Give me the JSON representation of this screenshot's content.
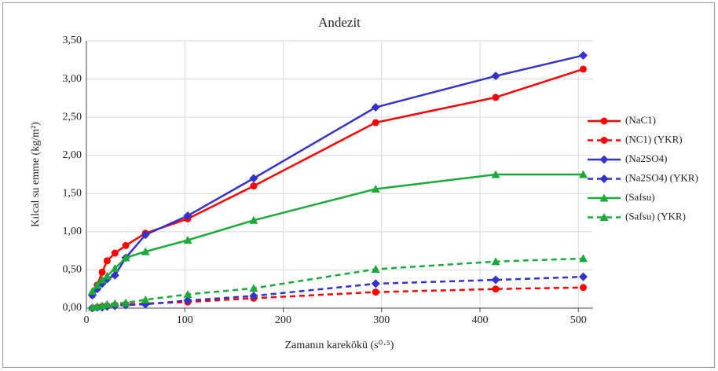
{
  "chart_data": {
    "type": "line",
    "title": "Andezit",
    "xlabel": "Zamanın karekökü (s⁰·⁵)",
    "ylabel": "Kılcal su emme (kg/m²)",
    "x": [
      6,
      11,
      16,
      21,
      29,
      40,
      60,
      103,
      170,
      294,
      416,
      505
    ],
    "series": [
      {
        "name": "(NaC1)",
        "color": "#ff0000",
        "marker": "circle",
        "dashed": false,
        "values": [
          0.17,
          0.3,
          0.47,
          0.62,
          0.72,
          0.82,
          0.98,
          1.17,
          1.6,
          2.43,
          2.76,
          3.13
        ]
      },
      {
        "name": "(NC1) (YKR)",
        "color": "#ff0000",
        "marker": "circle",
        "dashed": true,
        "values": [
          0,
          0.01,
          0.02,
          0.03,
          0.04,
          0.05,
          0.06,
          0.08,
          0.13,
          0.21,
          0.25,
          0.27
        ]
      },
      {
        "name": "(Na2SO4)",
        "color": "#3333cc",
        "marker": "diamond",
        "dashed": false,
        "values": [
          0.17,
          0.25,
          0.32,
          0.38,
          0.43,
          0.66,
          0.96,
          1.21,
          1.7,
          2.63,
          3.04,
          3.31
        ]
      },
      {
        "name": "(Na2SO4) (YKR)",
        "color": "#3333cc",
        "marker": "diamond",
        "dashed": true,
        "values": [
          0,
          0.01,
          0.01,
          0.02,
          0.03,
          0.04,
          0.05,
          0.1,
          0.16,
          0.32,
          0.37,
          0.41
        ]
      },
      {
        "name": "(Safsu)",
        "color": "#1aaa3a",
        "marker": "triangle",
        "dashed": false,
        "values": [
          0.22,
          0.3,
          0.37,
          0.42,
          0.52,
          0.66,
          0.74,
          0.89,
          1.15,
          1.56,
          1.75,
          1.75
        ]
      },
      {
        "name": "(Safsu) (YKR)",
        "color": "#1aaa3a",
        "marker": "triangle",
        "dashed": true,
        "values": [
          0.01,
          0.02,
          0.03,
          0.05,
          0.06,
          0.07,
          0.11,
          0.18,
          0.26,
          0.51,
          0.61,
          0.65
        ]
      }
    ],
    "xlim": [
      0,
      515
    ],
    "xticks": [
      0,
      100,
      200,
      300,
      400,
      500
    ],
    "ylim": [
      0,
      3.5
    ],
    "yticks": [
      {
        "value": 0,
        "label": "0,00"
      },
      {
        "value": 0.5,
        "label": "0,50"
      },
      {
        "value": 1,
        "label": "1,00"
      },
      {
        "value": 1.5,
        "label": "1,50"
      },
      {
        "value": 2,
        "label": "2,00"
      },
      {
        "value": 2.5,
        "label": "2,50"
      },
      {
        "value": 3,
        "label": "3,00"
      },
      {
        "value": 3.5,
        "label": "3,50"
      }
    ],
    "grid": true,
    "legend": "right"
  }
}
